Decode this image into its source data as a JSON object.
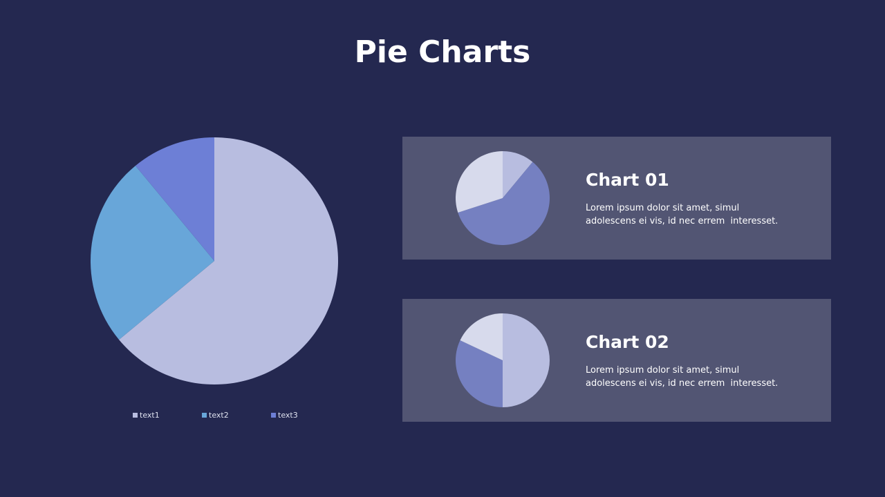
{
  "title": "Pie Charts",
  "chart_data": [
    {
      "type": "pie",
      "slices": [
        {
          "label": "text1",
          "value": 0.64,
          "color": "#b8bde0"
        },
        {
          "label": "text2",
          "value": 0.25,
          "color": "#68a6d9"
        },
        {
          "label": "text3",
          "value": 0.11,
          "color": "#6d7fd6"
        }
      ],
      "legend": {
        "position": "bottom"
      }
    },
    {
      "type": "pie",
      "title": "Chart 01",
      "slices": [
        {
          "value": 0.11,
          "color": "#b8bde0"
        },
        {
          "value": 0.59,
          "color": "#7580c1"
        },
        {
          "value": 0.3,
          "color": "#d7daec"
        }
      ]
    },
    {
      "type": "pie",
      "title": "Chart 02",
      "slices": [
        {
          "value": 0.5,
          "color": "#b8bde0"
        },
        {
          "value": 0.32,
          "color": "#7580c1"
        },
        {
          "value": 0.18,
          "color": "#d7daec"
        }
      ]
    }
  ],
  "cards": [
    {
      "title": "Chart 01",
      "lines": [
        "Lorem ipsum dolor sit amet, simul",
        "adolescens ei vis, id nec errem  interesset."
      ]
    },
    {
      "title": "Chart 02",
      "lines": [
        "Lorem ipsum dolor sit amet, simul",
        "adolescens ei vis, id nec errem  interesset."
      ]
    }
  ]
}
